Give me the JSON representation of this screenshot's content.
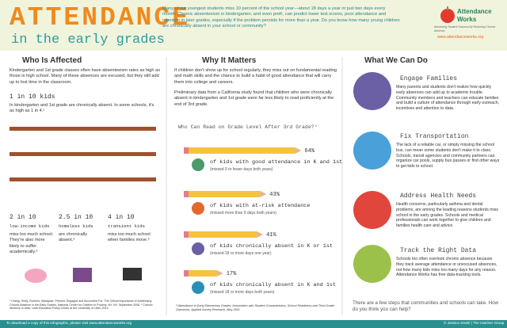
{
  "header": {
    "title": "ATTENDANCE",
    "subtitle": "in the early grades",
    "intro": "Many of our youngest students miss 10 percent of the school year—about 18 days a year or just two days every month. Chronic absenteeism in kindergarten, and even preK, can predict lower test scores, poor attendance and retention in later grades, especially if the problem persists for more than a year. Do you know how many young children are chronically absent in your school or community?",
    "logo": "Attendance Works",
    "logo_tagline": "Advancing Student Success By Reducing Chronic Absence",
    "url": "www.attendanceworks.org"
  },
  "left": {
    "heading": "Who Is Affected",
    "intro": "Kindergarten and 1st grade classes often have absenteeism rates as high as those in high school. Many of these absences are excused, but they still add up to lost time in the classroom.",
    "main_stat": {
      "head": "1 in 10 kids",
      "text": "In kindergarten and 1st grade are chronically absent. In some schools, it's as high as 1 in 4.¹"
    },
    "stats": [
      {
        "head": "2 in 10",
        "sub": "low-income kids",
        "text": "miss too much school. They're also more likely to suffer academically.²"
      },
      {
        "head": "2.5 in 10",
        "sub": "homeless kids",
        "text": "are chronically absent.³"
      },
      {
        "head": "4 in 10",
        "sub": "transient kids",
        "text": "miss too much school when families move.³"
      }
    ],
    "footnotes": "¹ Chang, Hedy; Romero, Mariajose. Present, Engaged and Accounted For: The Critical Importance of Addressing Chronic Absence in the Early Grades, National Center for Children in Poverty: NY, NY, September 2008. ² Chronic Absence in Utah, Utah Education Policy Center at the University of Utah, 2012."
  },
  "middle": {
    "heading": "Why It Matters",
    "p1": "If children don't show up for school regularly, they miss out on fundamental reading and math skills and the chance to build a habit of good attendance that will carry them into college and careers.",
    "p2": "Preliminary data from a California study found that children who were chronically absent in kindergarten and 1st grade were far less likely to read proficiently at the end of 3rd grade.",
    "chart_title": "Who Can Read on Grade Level After 3rd Grade?⁴",
    "rows": [
      {
        "value": {
          "value": 64,
          "label": "64%"
        },
        "text": "of kids with good attendance in K and 1st",
        "note": "(missed 9 or fewer days both years)"
      },
      {
        "value": {
          "value": 43,
          "label": "43%"
        },
        "text": "of kids with at-risk attendance",
        "note": "(missed more than 9 days both years)"
      },
      {
        "value": {
          "value": 41,
          "label": "41%"
        },
        "text": "of kids chronically absent in K or 1st",
        "note": "(missed 18 or more days one year)"
      },
      {
        "value": {
          "value": 17,
          "label": "17%"
        },
        "text": "of kids chronically absent in K and 1st",
        "note": "(missed 18 or more days both years)"
      }
    ],
    "footnote": "⁴ Attendance in Early Elementary Grades: Association with Student Characteristics, School Readiness and Third Grade Outcomes, Applied Survey Research, May 2011."
  },
  "right": {
    "heading": "What We Can Do",
    "items": [
      {
        "title": "Engage Families",
        "text": "Many parents and students don't realize how quickly early absences can add up to academic trouble. Community members and teachers can educate families and build a culture of attendance through early outreach, incentives and attention to data."
      },
      {
        "title": "Fix Transportation",
        "text": "The lack of a reliable car, or simply missing the school bus, can mean some students don't make it to class. Schools, transit agencies and community partners can organize car pools, supply bus passes or find other ways to get kids to school."
      },
      {
        "title": "Address Health Needs",
        "text": "Health concerns, particularly asthma and dental problems, are among the leading reasons students miss school in the early grades. Schools and medical professionals can work together to give children and families health care and advice."
      },
      {
        "title": "Track the Right Data",
        "text": "Schools too often overlook chronic absence because they track average attendance or unexcused absences, not how many kids miss too many days for any reason. Attendance Works has free data-tracking tools."
      }
    ],
    "closing": "There are a few steps that communities and schools can take. How do you think you can help?"
  },
  "footer": {
    "left": "To download a copy of this infographic, please visit www.attendanceworks.org",
    "right": "© Jessica Strahl | The Hatcher Group"
  }
}
